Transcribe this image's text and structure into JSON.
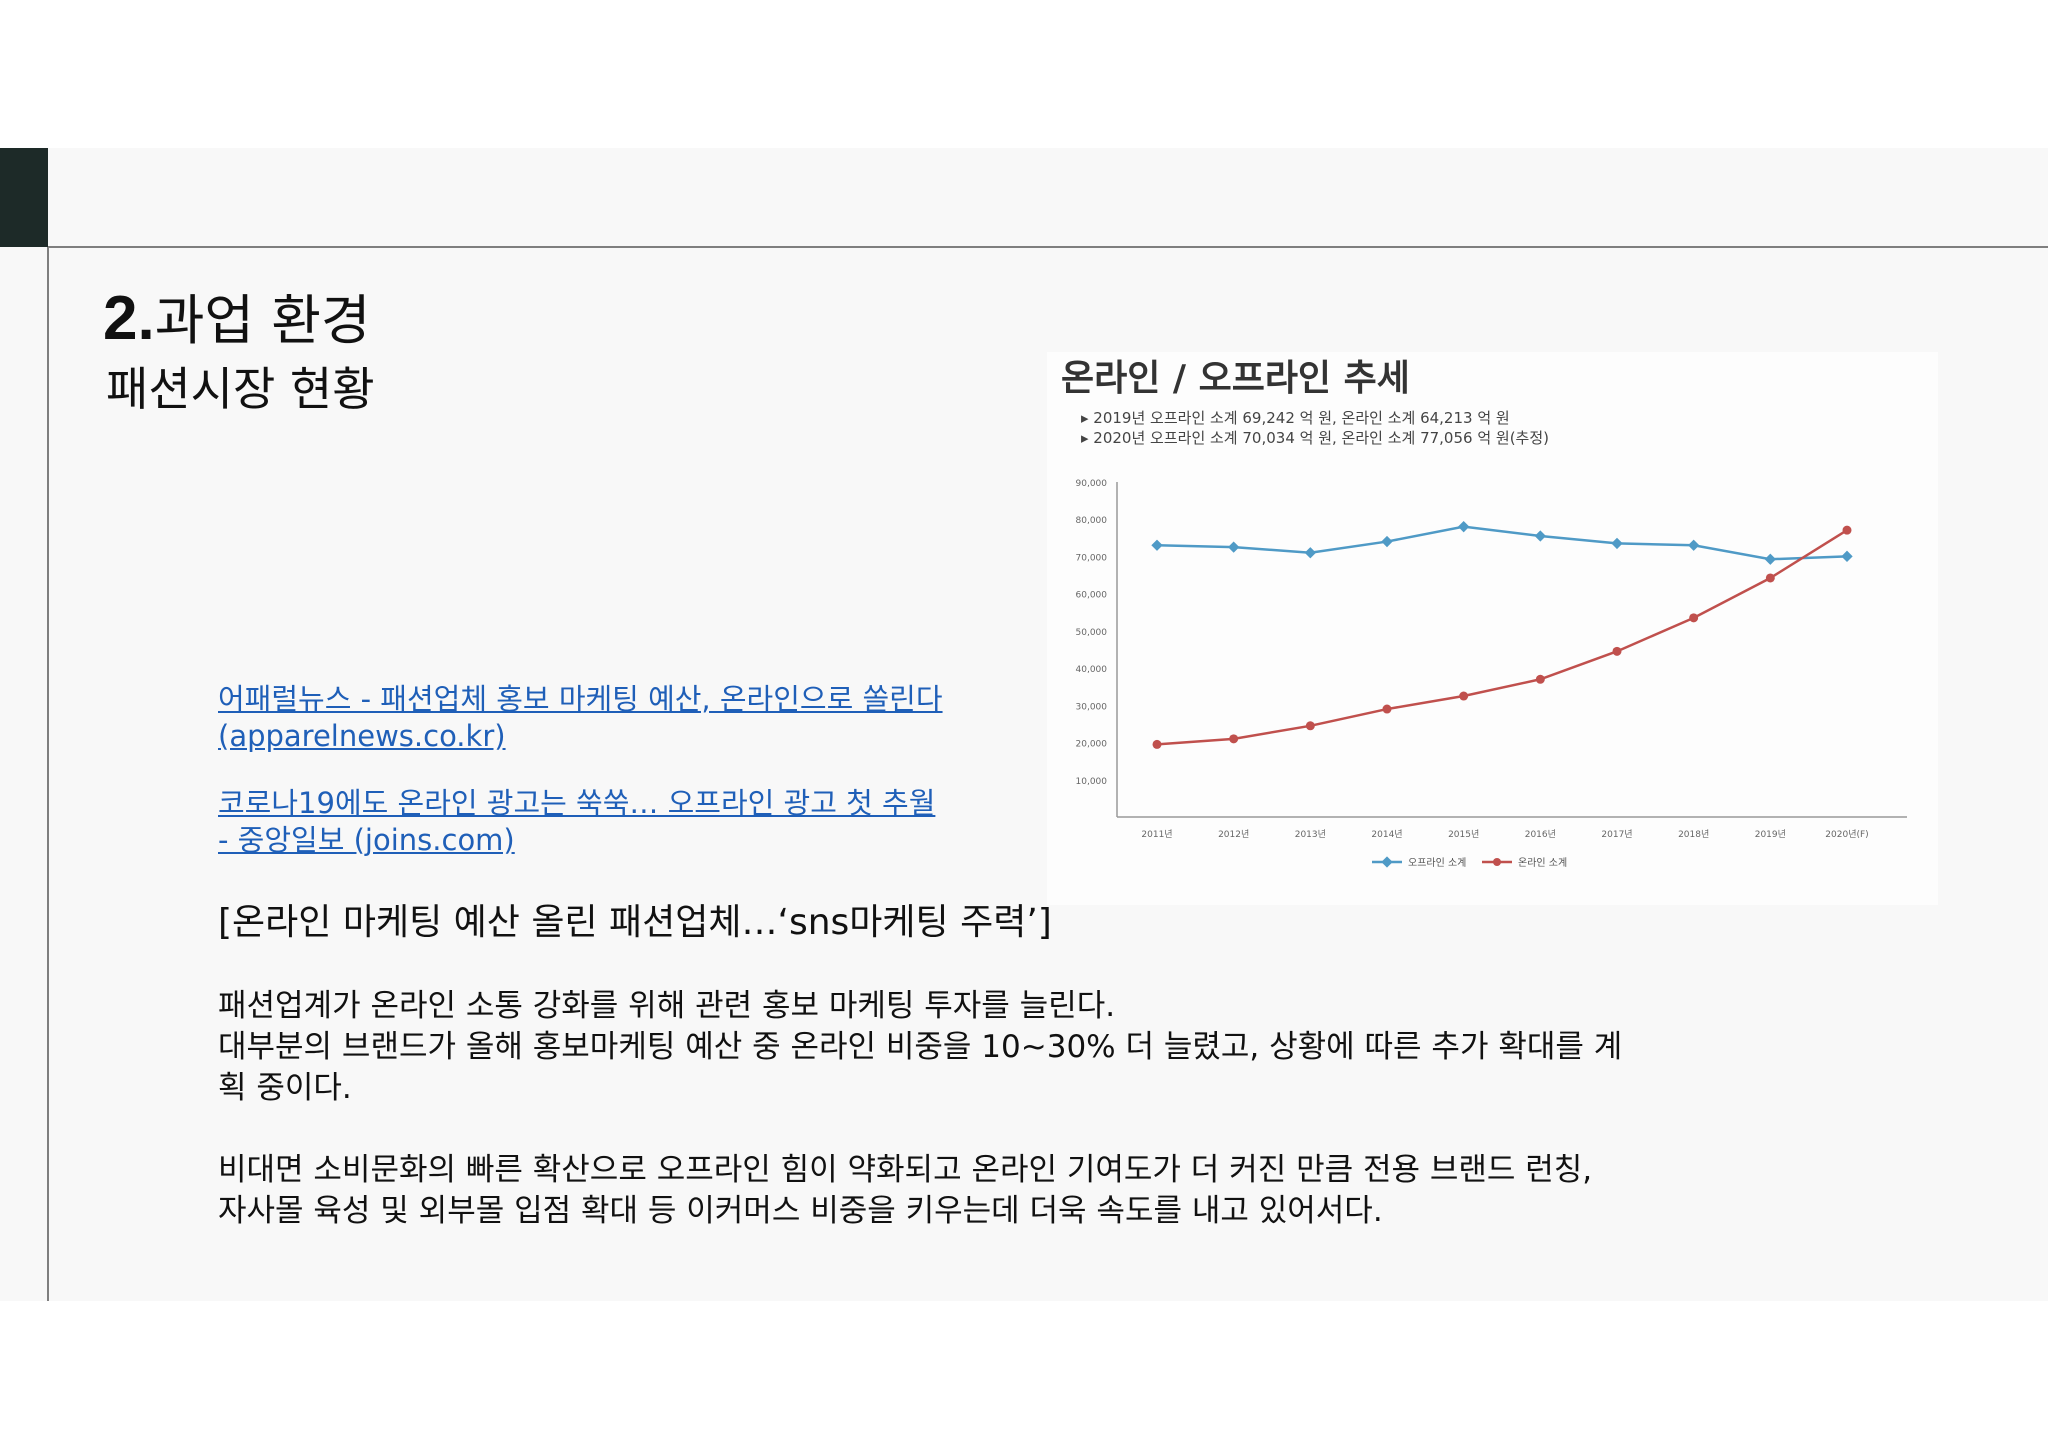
{
  "header": {
    "title_number": "2.",
    "title_text": "과업 환경",
    "subtitle": "패션시장 현황"
  },
  "links": [
    {
      "line1": "어패럴뉴스 - 패션업체 홍보 마케팅 예산, 온라인으로 쏠린다",
      "line2": "(apparelnews.co.kr)"
    },
    {
      "line1": "코로나19에도 온라인 광고는 쑥쑥… 오프라인 광고 첫 추월",
      "line2": "- 중앙일보 (joins.com)"
    }
  ],
  "quote_heading": "[온라인 마케팅 예산 올린 패션업체…‘sns마케팅 주력’]",
  "body": {
    "p1_line1": "패션업계가 온라인 소통 강화를 위해 관련 홍보 마케팅 투자를 늘린다.",
    "p1_line2": "대부분의 브랜드가 올해 홍보마케팅 예산 중 온라인 비중을 10~30% 더 늘렸고, 상황에 따른 추가 확대를 계",
    "p1_line3": "획 중이다.",
    "p2_line1": "비대면 소비문화의 빠른 확산으로 오프라인 힘이 약화되고 온라인 기여도가 더 커진 만큼 전용 브랜드 런칭,",
    "p2_line2": "자사몰 육성 및 외부몰 입점 확대 등 이커머스 비중을 키우는데 더욱 속도를 내고 있어서다."
  },
  "chart_data": {
    "type": "line",
    "title": "온라인 / 오프라인 추세",
    "notes": [
      "▸ 2019년 오프라인 소계 69,242 억 원, 온라인 소계 64,213 억 원",
      "▸ 2020년 오프라인 소계 70,034 억 원, 온라인 소계 77,056 억 원(추정)"
    ],
    "categories": [
      "2011년",
      "2012년",
      "2013년",
      "2014년",
      "2015년",
      "2016년",
      "2017년",
      "2018년",
      "2019년",
      "2020년(F)"
    ],
    "ylim": [
      0,
      90000
    ],
    "yticks": [
      10000,
      20000,
      30000,
      40000,
      50000,
      60000,
      70000,
      80000,
      90000
    ],
    "ytick_labels": [
      "10,000",
      "20,000",
      "30,000",
      "40,000",
      "50,000",
      "60,000",
      "70,000",
      "80,000",
      "90,000"
    ],
    "series": [
      {
        "name": "오프라인 소계",
        "color": "#4f9ac6",
        "values": [
          73000,
          72500,
          71000,
          74000,
          78000,
          75500,
          73500,
          73000,
          69242,
          70034
        ]
      },
      {
        "name": "온라인 소계",
        "color": "#c0504d",
        "values": [
          19500,
          21000,
          24500,
          29000,
          32500,
          37000,
          44500,
          53500,
          64213,
          77056
        ]
      }
    ],
    "legend_position": "bottom",
    "grid": false
  }
}
